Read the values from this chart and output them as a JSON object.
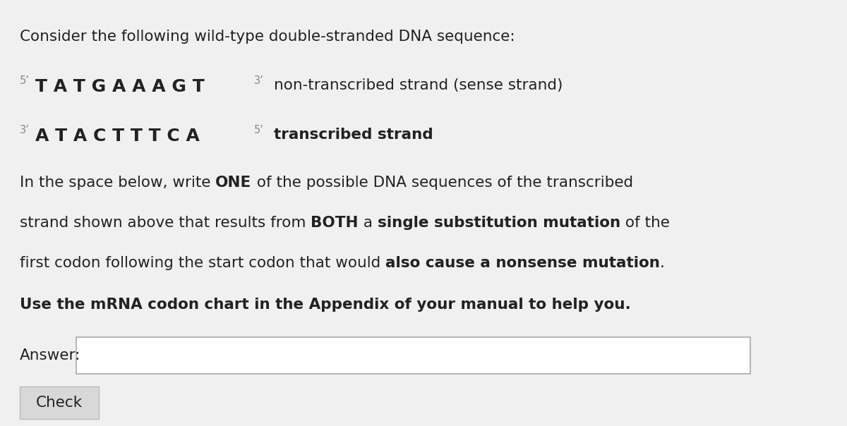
{
  "bg_color": "#f0f0f0",
  "text_color": "#222222",
  "title_line": "Consider the following wild-type double-stranded DNA sequence:",
  "strand1_prefix": "5’",
  "strand1_seq": "T A T G A A A G T",
  "strand1_suffix": "3’",
  "strand1_label": "non-transcribed strand (sense strand)",
  "strand2_prefix": "3’",
  "strand2_seq": "A T A C T T T C A",
  "strand2_suffix": "5’",
  "strand2_label": "transcribed strand",
  "bold_line": "Use the mRNA codon chart in the Appendix of your manual to help you.",
  "answer_label": "Answer:",
  "check_label": "Check",
  "answer_box_color": "#ffffff",
  "check_box_color": "#d8d8d8",
  "answer_box_border": "#aaaaaa",
  "check_box_border": "#bbbbbb",
  "body_line1_parts": [
    [
      "In the space below, write ",
      false
    ],
    [
      "ONE",
      true
    ],
    [
      " of the possible DNA sequences of the transcribed",
      false
    ]
  ],
  "body_line2_parts": [
    [
      "strand shown above that results from ",
      false
    ],
    [
      "BOTH",
      true
    ],
    [
      " a ",
      false
    ],
    [
      "single substitution mutation",
      true
    ],
    [
      " of the",
      false
    ]
  ],
  "body_line3_parts": [
    [
      "first codon following the start codon that would ",
      false
    ],
    [
      "also cause a nonsense mutation",
      true
    ],
    [
      ".",
      false
    ]
  ]
}
